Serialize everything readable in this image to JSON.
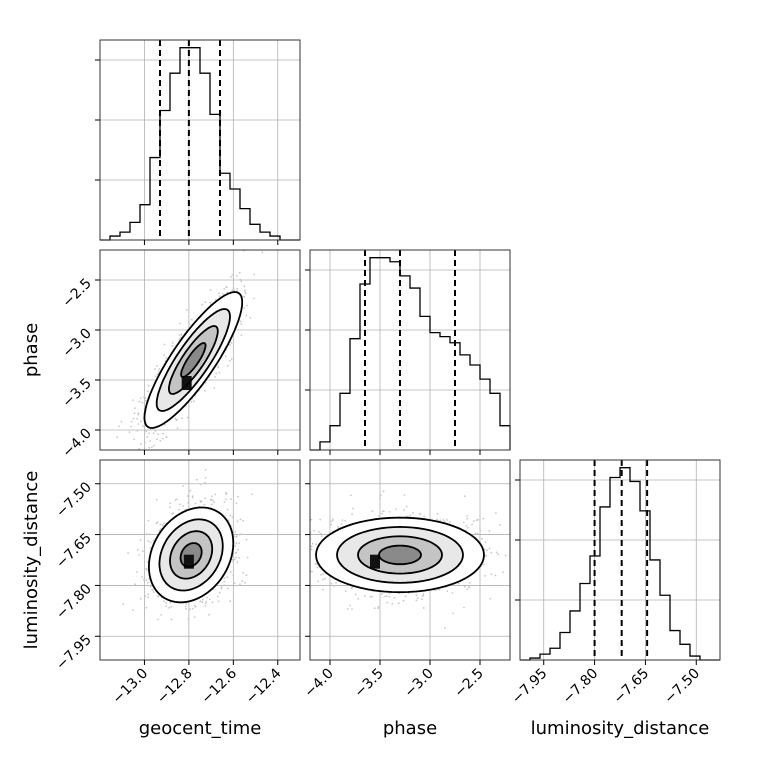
{
  "chart_data": {
    "type": "corner",
    "parameters": [
      "geocent_time",
      "phase",
      "luminosity_distance"
    ],
    "grid": true,
    "axis_labels": {
      "x": [
        "geocent_time",
        "phase",
        "luminosity_distance"
      ],
      "y": [
        "",
        "phase",
        "luminosity_distance"
      ]
    },
    "ranges": {
      "geocent_time": [
        -13.2,
        -12.3
      ],
      "phase": [
        -4.2,
        -2.2
      ],
      "luminosity_distance": [
        -8.02,
        -7.43
      ]
    },
    "ticks": {
      "geocent_time": {
        "values": [
          -13.0,
          -12.8,
          -12.6,
          -12.4
        ],
        "labels": [
          "−13.0",
          "−12.8",
          "−12.6",
          "−12.4"
        ]
      },
      "phase": {
        "values": [
          -4.0,
          -3.5,
          -3.0,
          -2.5
        ],
        "labels": [
          "−4.0",
          "−3.5",
          "−3.0",
          "−2.5"
        ]
      },
      "luminosity_distance": {
        "values": [
          -7.95,
          -7.8,
          -7.65,
          -7.5
        ],
        "labels": [
          "−7.95",
          "−7.80",
          "−7.65",
          "−7.50"
        ]
      }
    },
    "histograms": {
      "geocent_time": {
        "edges": [
          -13.2,
          -13.155,
          -13.11,
          -13.065,
          -13.02,
          -12.975,
          -12.93,
          -12.885,
          -12.84,
          -12.795,
          -12.75,
          -12.705,
          -12.66,
          -12.615,
          -12.57,
          -12.525,
          -12.48,
          -12.435,
          -12.39,
          -12.345,
          -12.3
        ],
        "counts": [
          0,
          2,
          4,
          9,
          18,
          42,
          66,
          85,
          98,
          98,
          85,
          64,
          34,
          26,
          16,
          8,
          4,
          2,
          0,
          0
        ],
        "quantiles": [
          -12.93,
          -12.8,
          -12.66
        ]
      },
      "phase": {
        "edges": [
          -4.2,
          -4.1,
          -4.0,
          -3.9,
          -3.8,
          -3.7,
          -3.6,
          -3.5,
          -3.4,
          -3.3,
          -3.2,
          -3.1,
          -3.0,
          -2.9,
          -2.8,
          -2.7,
          -2.6,
          -2.5,
          -2.4,
          -2.3,
          -2.2
        ],
        "counts": [
          0,
          4,
          12,
          28,
          55,
          82,
          95,
          95,
          93,
          86,
          80,
          66,
          58,
          56,
          53,
          47,
          42,
          35,
          28,
          12
        ],
        "quantiles": [
          -3.65,
          -3.3,
          -2.75
        ]
      },
      "luminosity_distance": {
        "edges": [
          -8.02,
          -7.9905,
          -7.961,
          -7.9315,
          -7.902,
          -7.8725,
          -7.843,
          -7.8135,
          -7.784,
          -7.7545,
          -7.725,
          -7.6955,
          -7.666,
          -7.6365,
          -7.607,
          -7.5775,
          -7.548,
          -7.5185,
          -7.489,
          -7.4595,
          -7.43
        ],
        "counts": [
          0,
          1,
          3,
          6,
          14,
          25,
          39,
          53,
          78,
          93,
          98,
          91,
          76,
          51,
          33,
          15,
          8,
          2,
          0,
          0
        ],
        "quantiles": [
          -7.8,
          -7.72,
          -7.645
        ]
      }
    },
    "pairs": [
      {
        "x": "geocent_time",
        "y": "phase",
        "mean": [
          -12.78,
          -3.3
        ],
        "sd": [
          0.11,
          0.34
        ],
        "rho": 0.85,
        "peak": [
          -12.81,
          -3.53
        ]
      },
      {
        "x": "geocent_time",
        "y": "luminosity_distance",
        "mean": [
          -12.79,
          -7.71
        ],
        "sd": [
          0.095,
          0.07
        ],
        "rho": 0.25,
        "peak": [
          -12.8,
          -7.73
        ]
      },
      {
        "x": "phase",
        "y": "luminosity_distance",
        "mean": [
          -3.3,
          -7.71
        ],
        "sd": [
          0.42,
          0.055
        ],
        "rho": 0.0,
        "peak": [
          -3.55,
          -7.73
        ]
      }
    ],
    "contour_levels_sigma": [
      0.5,
      1.0,
      1.5,
      2.0
    ]
  }
}
